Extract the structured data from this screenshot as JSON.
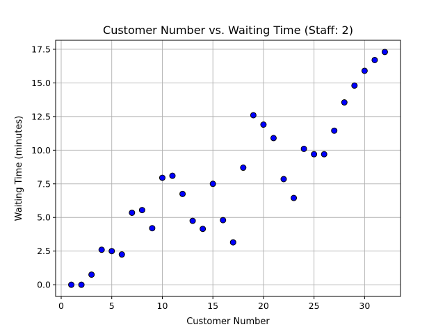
{
  "chart_data": {
    "type": "scatter",
    "title": "Customer Number vs. Waiting Time (Staff: 2)",
    "xlabel": "Customer Number",
    "ylabel": "Waiting Time (minutes)",
    "xlim": [
      -0.55,
      33.55
    ],
    "ylim": [
      -0.87,
      18.17
    ],
    "xticks": [
      0,
      5,
      10,
      15,
      20,
      25,
      30
    ],
    "yticks": [
      0.0,
      2.5,
      5.0,
      7.5,
      10.0,
      12.5,
      15.0,
      17.5
    ],
    "xtick_labels": [
      "0",
      "5",
      "10",
      "15",
      "20",
      "25",
      "30"
    ],
    "ytick_labels": [
      "0.0",
      "2.5",
      "5.0",
      "7.5",
      "10.0",
      "12.5",
      "15.0",
      "17.5"
    ],
    "grid": true,
    "marker_color": "#0000ff",
    "marker_edge_color": "#000000",
    "points": [
      {
        "x": 1,
        "y": 0.0
      },
      {
        "x": 2,
        "y": 0.0
      },
      {
        "x": 3,
        "y": 0.75
      },
      {
        "x": 4,
        "y": 2.6
      },
      {
        "x": 5,
        "y": 2.5
      },
      {
        "x": 6,
        "y": 2.25
      },
      {
        "x": 7,
        "y": 5.35
      },
      {
        "x": 8,
        "y": 5.55
      },
      {
        "x": 9,
        "y": 4.2
      },
      {
        "x": 10,
        "y": 7.95
      },
      {
        "x": 11,
        "y": 8.1
      },
      {
        "x": 12,
        "y": 6.75
      },
      {
        "x": 13,
        "y": 4.75
      },
      {
        "x": 14,
        "y": 4.15
      },
      {
        "x": 15,
        "y": 7.5
      },
      {
        "x": 16,
        "y": 4.8
      },
      {
        "x": 17,
        "y": 3.15
      },
      {
        "x": 18,
        "y": 8.7
      },
      {
        "x": 19,
        "y": 12.6
      },
      {
        "x": 20,
        "y": 11.9
      },
      {
        "x": 21,
        "y": 10.9
      },
      {
        "x": 22,
        "y": 7.85
      },
      {
        "x": 23,
        "y": 6.45
      },
      {
        "x": 24,
        "y": 10.1
      },
      {
        "x": 25,
        "y": 9.7
      },
      {
        "x": 26,
        "y": 9.7
      },
      {
        "x": 27,
        "y": 11.45
      },
      {
        "x": 28,
        "y": 13.55
      },
      {
        "x": 29,
        "y": 14.8
      },
      {
        "x": 30,
        "y": 15.9
      },
      {
        "x": 31,
        "y": 16.7
      },
      {
        "x": 32,
        "y": 17.3
      }
    ]
  }
}
